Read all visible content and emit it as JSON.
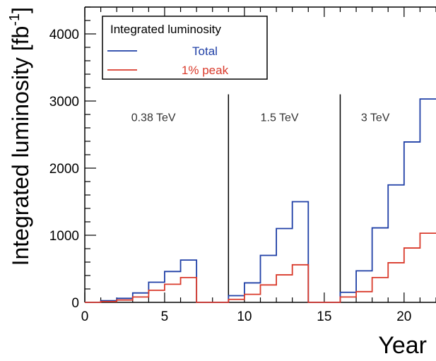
{
  "chart_data": {
    "type": "line",
    "step": true,
    "title": "",
    "xlabel": "Year",
    "ylabel": "Integrated luminosity [fb",
    "ylabel_sup": "-1",
    "ylabel_close": "]",
    "xlim": [
      0,
      22
    ],
    "ylim": [
      0,
      4400
    ],
    "x_ticks": [
      0,
      5,
      10,
      15,
      20
    ],
    "y_ticks": [
      0,
      1000,
      2000,
      3000,
      4000
    ],
    "grid": false,
    "legend": {
      "title": "Integrated luminosity",
      "placement": "top-left"
    },
    "x_edges": [
      0,
      1,
      2,
      3,
      4,
      5,
      6,
      7,
      8,
      9,
      10,
      11,
      12,
      13,
      14,
      15,
      16,
      17,
      18,
      19,
      20,
      21,
      22
    ],
    "series": [
      {
        "name": "Total",
        "color": "#1f3fa6",
        "values": [
          0,
          25,
          60,
          140,
          300,
          460,
          630,
          0,
          0,
          100,
          290,
          700,
          1100,
          1500,
          0,
          0,
          150,
          470,
          1110,
          1750,
          2390,
          3030
        ]
      },
      {
        "name": "1% peak",
        "color": "#d93a2b",
        "values": [
          0,
          12,
          35,
          80,
          180,
          270,
          370,
          0,
          0,
          45,
          120,
          260,
          410,
          560,
          0,
          0,
          80,
          160,
          370,
          590,
          810,
          1030
        ]
      }
    ],
    "stage_boundaries": [
      9,
      16
    ],
    "stage_labels": [
      {
        "text": "0.38 TeV",
        "x": 4.3,
        "y": 2700
      },
      {
        "text": "1.5 TeV",
        "x": 12.2,
        "y": 2700
      },
      {
        "text": "3 TeV",
        "x": 18.2,
        "y": 2700
      }
    ]
  }
}
